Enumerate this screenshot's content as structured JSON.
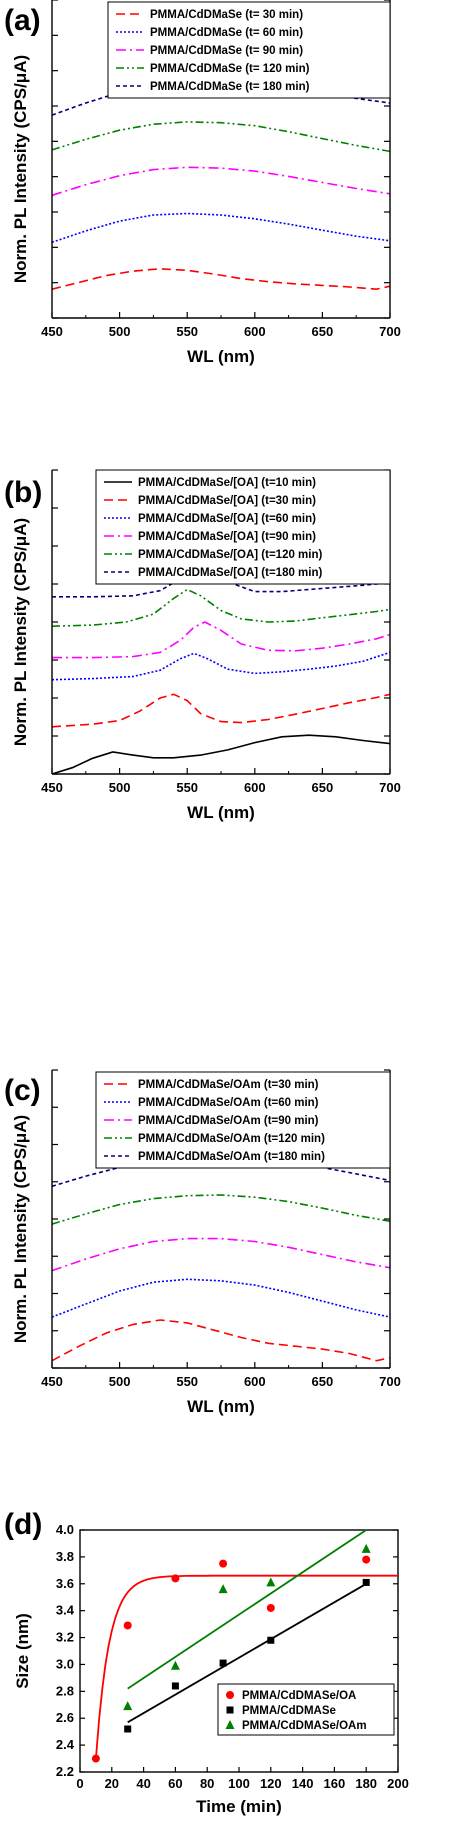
{
  "chart_data": [
    {
      "type": "line",
      "panel": "(a)",
      "xlabel": "WL (nm)",
      "ylabel": "Norm. PL Intensity (CPS/μA)",
      "xlim": [
        450,
        700
      ],
      "xticks": [
        "450",
        "500",
        "550",
        "600",
        "650",
        "700"
      ],
      "legend_position": "top-right",
      "series": [
        {
          "name": "PMMA/CdDMaSe (t= 30 min)",
          "color": "#ff0000",
          "dash": "dash",
          "x": [
            450,
            470,
            490,
            510,
            530,
            550,
            570,
            590,
            610,
            630,
            650,
            670,
            690,
            700
          ],
          "y": [
            0.38,
            0.47,
            0.56,
            0.62,
            0.65,
            0.63,
            0.58,
            0.52,
            0.48,
            0.45,
            0.43,
            0.41,
            0.38,
            0.42
          ]
        },
        {
          "name": "PMMA/CdDMaSe (t= 60 min)",
          "color": "#0000ff",
          "dash": "dot",
          "x": [
            450,
            475,
            500,
            525,
            550,
            575,
            600,
            625,
            650,
            675,
            700
          ],
          "y": [
            1.0,
            1.15,
            1.28,
            1.36,
            1.38,
            1.36,
            1.31,
            1.24,
            1.16,
            1.08,
            1.02
          ]
        },
        {
          "name": "PMMA/CdDMaSe (t= 90 min)",
          "color": "#ff00ff",
          "dash": "dashdot",
          "x": [
            450,
            475,
            500,
            525,
            550,
            575,
            600,
            625,
            650,
            675,
            700
          ],
          "y": [
            1.62,
            1.76,
            1.88,
            1.96,
            1.99,
            1.98,
            1.94,
            1.87,
            1.79,
            1.71,
            1.64
          ]
        },
        {
          "name": "PMMA/CdDMaSe (t= 120 min)",
          "color": "#008000",
          "dash": "dashdotdot",
          "x": [
            450,
            475,
            500,
            525,
            550,
            575,
            600,
            625,
            650,
            675,
            700
          ],
          "y": [
            2.22,
            2.36,
            2.48,
            2.56,
            2.59,
            2.58,
            2.54,
            2.46,
            2.37,
            2.28,
            2.2
          ]
        },
        {
          "name": "PMMA/CdDMaSe (t= 180 min)",
          "color": "#000080",
          "dash": "shortdash",
          "x": [
            450,
            475,
            500,
            525,
            550,
            575,
            600,
            625,
            650,
            675,
            700
          ],
          "y": [
            2.68,
            2.84,
            2.98,
            3.07,
            3.12,
            3.14,
            3.12,
            3.06,
            2.98,
            2.9,
            2.84
          ]
        }
      ]
    },
    {
      "type": "line",
      "panel": "(b)",
      "xlabel": "WL (nm)",
      "ylabel": "Norm. PL Intensity (CPS/μA)",
      "xlim": [
        450,
        700
      ],
      "xticks": [
        "450",
        "500",
        "550",
        "600",
        "650",
        "700"
      ],
      "legend_position": "top-right",
      "series": [
        {
          "name": "PMMA/CdDMaSe/[OA] (t=10 min)",
          "color": "#000000",
          "dash": "solid",
          "x": [
            450,
            465,
            480,
            495,
            510,
            525,
            540,
            560,
            580,
            600,
            620,
            640,
            660,
            680,
            700
          ],
          "y": [
            0.0,
            0.12,
            0.3,
            0.42,
            0.36,
            0.31,
            0.31,
            0.36,
            0.46,
            0.6,
            0.71,
            0.74,
            0.71,
            0.64,
            0.58
          ]
        },
        {
          "name": "PMMA/CdDMaSe/[OA] (t=30 min)",
          "color": "#ff0000",
          "dash": "dash",
          "x": [
            450,
            480,
            500,
            515,
            530,
            540,
            550,
            560,
            575,
            590,
            610,
            630,
            650,
            670,
            690,
            700
          ],
          "y": [
            0.9,
            0.95,
            1.02,
            1.2,
            1.45,
            1.52,
            1.4,
            1.15,
            1.0,
            0.98,
            1.04,
            1.14,
            1.25,
            1.36,
            1.46,
            1.52
          ]
        },
        {
          "name": "PMMA/CdDMaSe/[OA] (t=60 min)",
          "color": "#0000ff",
          "dash": "dot",
          "x": [
            450,
            480,
            510,
            530,
            545,
            555,
            565,
            580,
            600,
            620,
            640,
            660,
            680,
            700
          ],
          "y": [
            1.8,
            1.82,
            1.86,
            1.98,
            2.2,
            2.3,
            2.2,
            2.0,
            1.92,
            1.95,
            2.0,
            2.06,
            2.15,
            2.32
          ]
        },
        {
          "name": "PMMA/CdDMaSe/[OA] (t=90 min)",
          "color": "#ff00ff",
          "dash": "dashdot",
          "x": [
            450,
            480,
            510,
            530,
            545,
            555,
            563,
            575,
            590,
            610,
            630,
            650,
            670,
            690,
            700
          ],
          "y": [
            2.22,
            2.22,
            2.24,
            2.32,
            2.55,
            2.8,
            2.9,
            2.74,
            2.48,
            2.36,
            2.35,
            2.4,
            2.48,
            2.58,
            2.66
          ]
        },
        {
          "name": "PMMA/CdDMaSe/[OA] (t=120 min)",
          "color": "#008000",
          "dash": "dashdotdot",
          "x": [
            450,
            480,
            505,
            525,
            540,
            550,
            560,
            575,
            590,
            610,
            630,
            650,
            670,
            690,
            700
          ],
          "y": [
            2.82,
            2.84,
            2.9,
            3.05,
            3.35,
            3.52,
            3.4,
            3.12,
            2.96,
            2.9,
            2.92,
            2.98,
            3.04,
            3.1,
            3.14
          ]
        },
        {
          "name": "PMMA/CdDMaSe/[OA] (t=180 min)",
          "color": "#000080",
          "dash": "shortdash",
          "x": [
            450,
            480,
            510,
            530,
            545,
            555,
            563,
            573,
            585,
            600,
            620,
            640,
            660,
            680,
            700
          ],
          "y": [
            3.38,
            3.38,
            3.4,
            3.5,
            3.72,
            3.98,
            4.08,
            3.92,
            3.62,
            3.48,
            3.48,
            3.52,
            3.56,
            3.6,
            3.65
          ]
        }
      ]
    },
    {
      "type": "line",
      "panel": "(c)",
      "xlabel": "WL (nm)",
      "ylabel": "Norm. PL Intensity (CPS/μA)",
      "xlim": [
        450,
        700
      ],
      "xticks": [
        "450",
        "500",
        "550",
        "600",
        "650",
        "700"
      ],
      "legend_position": "top-right",
      "series": [
        {
          "name": "PMMA/CdDMaSe/OAm (t=30 min)",
          "color": "#ff0000",
          "dash": "dash",
          "x": [
            450,
            470,
            490,
            510,
            530,
            550,
            570,
            590,
            610,
            630,
            650,
            670,
            690,
            700
          ],
          "y": [
            0.1,
            0.3,
            0.48,
            0.6,
            0.66,
            0.62,
            0.52,
            0.42,
            0.34,
            0.3,
            0.26,
            0.2,
            0.1,
            0.14
          ]
        },
        {
          "name": "PMMA/CdDMaSe/OAm (t=60 min)",
          "color": "#0000ff",
          "dash": "dot",
          "x": [
            450,
            475,
            500,
            525,
            550,
            575,
            600,
            625,
            650,
            675,
            700
          ],
          "y": [
            0.7,
            0.88,
            1.06,
            1.18,
            1.22,
            1.2,
            1.14,
            1.04,
            0.92,
            0.8,
            0.7
          ]
        },
        {
          "name": "PMMA/CdDMaSe/OAm (t=90 min)",
          "color": "#ff00ff",
          "dash": "dashdot",
          "x": [
            450,
            475,
            500,
            525,
            550,
            575,
            600,
            625,
            650,
            675,
            700
          ],
          "y": [
            1.34,
            1.5,
            1.64,
            1.74,
            1.78,
            1.78,
            1.74,
            1.66,
            1.56,
            1.46,
            1.38
          ]
        },
        {
          "name": "PMMA/CdDMaSe/OAm (t=120 min)",
          "color": "#008000",
          "dash": "dashdotdot",
          "x": [
            450,
            475,
            500,
            525,
            550,
            575,
            600,
            625,
            650,
            675,
            700
          ],
          "y": [
            1.98,
            2.12,
            2.25,
            2.33,
            2.37,
            2.38,
            2.35,
            2.29,
            2.2,
            2.1,
            2.02
          ]
        },
        {
          "name": "PMMA/CdDMaSe/OAm (t=180 min)",
          "color": "#000080",
          "dash": "shortdash",
          "x": [
            450,
            475,
            500,
            525,
            550,
            575,
            600,
            625,
            650,
            675,
            700
          ],
          "y": [
            2.5,
            2.64,
            2.76,
            2.85,
            2.9,
            2.92,
            2.9,
            2.84,
            2.76,
            2.67,
            2.58
          ]
        }
      ]
    },
    {
      "type": "scatter",
      "panel": "(d)",
      "xlabel": "Time (min)",
      "ylabel": "Size (nm)",
      "xlim": [
        0,
        200
      ],
      "ylim": [
        2.2,
        4.0
      ],
      "xticks": [
        "0",
        "20",
        "40",
        "60",
        "80",
        "100",
        "120",
        "140",
        "160",
        "180",
        "200"
      ],
      "yticks": [
        "2.2",
        "2.4",
        "2.6",
        "2.8",
        "3.0",
        "3.2",
        "3.4",
        "3.6",
        "3.8",
        "4.0"
      ],
      "legend_position": "bottom-right",
      "series": [
        {
          "name": "PMMA/CdDMASe/OA",
          "color": "#ff0000",
          "marker": "circle",
          "x": [
            10,
            30,
            60,
            90,
            120,
            180
          ],
          "y": [
            2.3,
            3.29,
            3.64,
            3.75,
            3.42,
            3.78
          ]
        },
        {
          "name": "PMMA/CdDMASe",
          "color": "#000000",
          "marker": "square",
          "x": [
            30,
            60,
            90,
            120,
            180
          ],
          "y": [
            2.52,
            2.84,
            3.01,
            3.18,
            3.61
          ]
        },
        {
          "name": "PMMA/CdDMASe/OAm",
          "color": "#008000",
          "marker": "triangle",
          "x": [
            30,
            60,
            90,
            120,
            180
          ],
          "y": [
            2.69,
            2.99,
            3.56,
            3.61,
            3.86
          ]
        }
      ],
      "fits": [
        {
          "color": "#ff0000",
          "kind": "exponential-rise",
          "x": [
            10,
            200
          ],
          "plateau": 3.66,
          "start": 2.3,
          "rate": 0.12
        },
        {
          "color": "#000000",
          "kind": "linear",
          "x": [
            30,
            180
          ],
          "y": [
            2.57,
            3.6
          ]
        },
        {
          "color": "#008000",
          "kind": "linear",
          "x": [
            30,
            180
          ],
          "y": [
            2.82,
            4.0
          ]
        }
      ]
    }
  ]
}
